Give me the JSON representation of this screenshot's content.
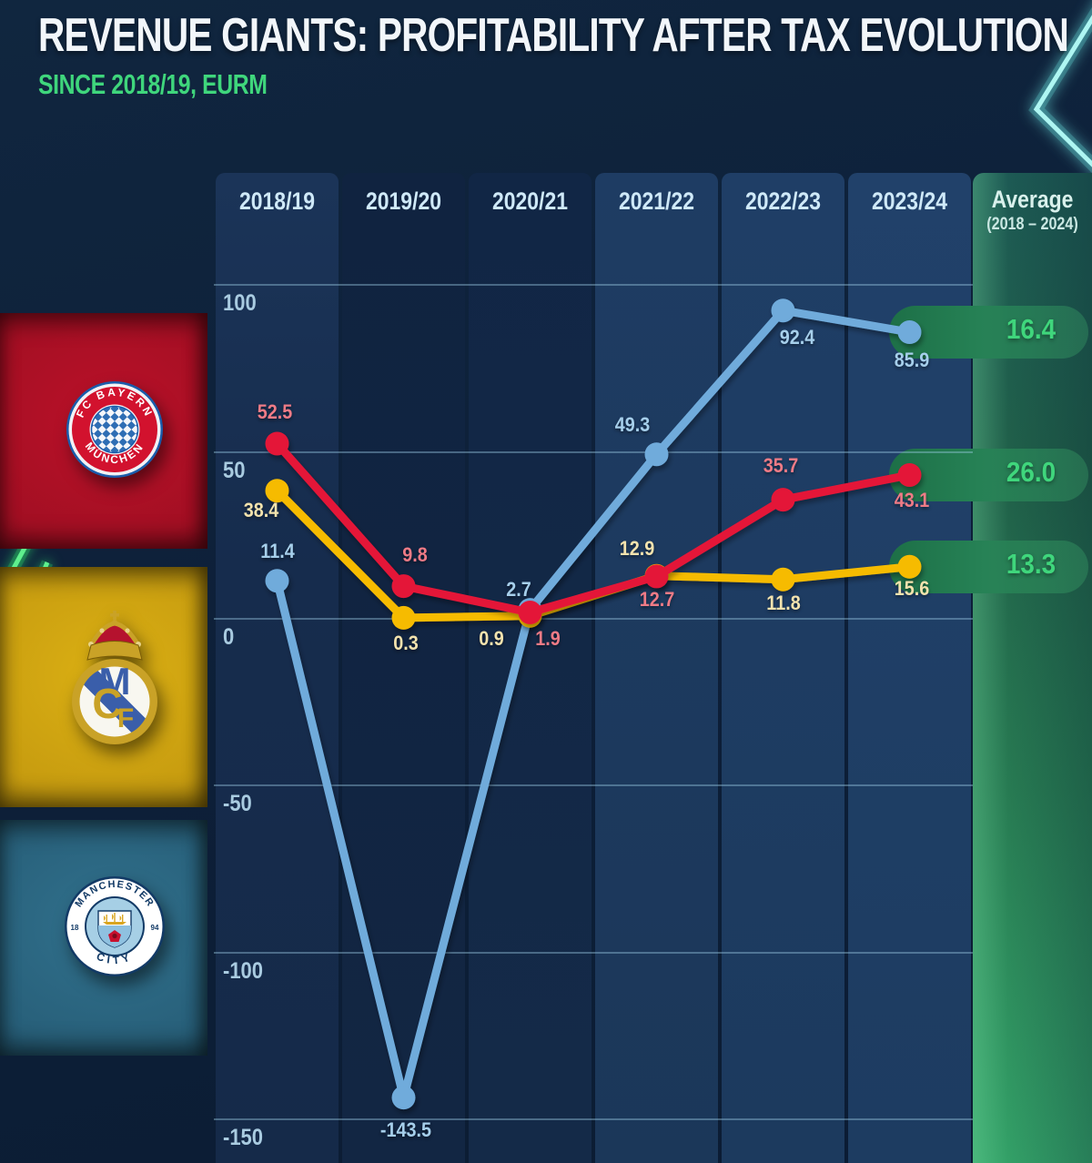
{
  "header": {
    "title": "REVENUE GIANTS: PROFITABILITY AFTER TAX EVOLUTION",
    "subtitle": "SINCE 2018/19, EURM"
  },
  "columns": [
    "2018/19",
    "2019/20",
    "2020/21",
    "2021/22",
    "2022/23",
    "2023/24"
  ],
  "average_header": {
    "line1": "Average",
    "line2": "(2018 – 2024)"
  },
  "y_axis_ticks": [
    "100",
    "50",
    "0",
    "-50",
    "-100",
    "-150"
  ],
  "chart_data": {
    "type": "line",
    "title": "REVENUE GIANTS: PROFITABILITY AFTER TAX EVOLUTION",
    "subtitle": "SINCE 2018/19, EURM",
    "unit": "EURm",
    "categories": [
      "2018/19",
      "2019/20",
      "2020/21",
      "2021/22",
      "2022/23",
      "2023/24"
    ],
    "series": [
      {
        "name": "FC Bayern München",
        "color": "#e41937",
        "label_color": "#ef7b86",
        "values": [
          52.5,
          9.8,
          1.9,
          12.7,
          35.7,
          43.1
        ],
        "average": "26.0"
      },
      {
        "name": "Real Madrid",
        "color": "#f6bb00",
        "label_color": "#f3e3ae",
        "values": [
          38.4,
          0.3,
          0.9,
          12.9,
          11.8,
          15.6
        ],
        "average": "13.3"
      },
      {
        "name": "Manchester City",
        "color": "#6fabdb",
        "label_color": "#a6cfeb",
        "values": [
          11.4,
          -143.5,
          2.7,
          49.3,
          92.4,
          85.9
        ],
        "average": "16.4"
      }
    ],
    "ylim": [
      -150,
      100
    ],
    "gridline_values": [
      100,
      50,
      0,
      -50,
      -100,
      -150
    ],
    "average_column_label": "Average (2018 – 2024)",
    "average_value_color": "#3fd67c",
    "grid": true,
    "legend_position": "left (club badges)"
  },
  "clubs": [
    {
      "name": "FC Bayern München",
      "panel_color": "#a30f23",
      "badge_text_top": "FC BAYERN",
      "badge_text_bottom": "MÜNCHEN"
    },
    {
      "name": "Real Madrid",
      "panel_color": "#c79c10",
      "monogram_m": "M",
      "monogram_c": "C",
      "monogram_f": "F"
    },
    {
      "name": "Manchester City",
      "panel_color": "#28607a",
      "badge_text_top": "MANCHESTER",
      "badge_text_bottom": "CITY",
      "badge_year_left": "18",
      "badge_year_right": "94"
    }
  ],
  "accent_colors": {
    "green_text": "#3fd67c",
    "neon_green": "#2ee06a",
    "neon_cyan": "#8df2ee",
    "grid_line": "#9ecde6",
    "background": "#0d1f38"
  }
}
